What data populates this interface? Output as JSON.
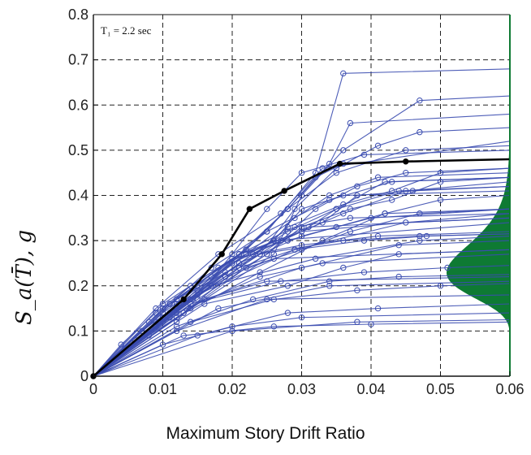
{
  "chart_data": {
    "type": "line",
    "xlabel": "Maximum Story Drift Ratio",
    "ylabel": "S_a(T̄), g",
    "xlim": [
      0,
      0.06
    ],
    "ylim": [
      0,
      0.8
    ],
    "x_ticks": [
      "0",
      "0.01",
      "0.02",
      "0.03",
      "0.04",
      "0.05",
      "0.06"
    ],
    "y_ticks": [
      "0",
      "0.1",
      "0.2",
      "0.3",
      "0.4",
      "0.5",
      "0.6",
      "0.7",
      "0.8"
    ],
    "annotation": "T₁ = 2.2 sec",
    "grid": true,
    "colors": {
      "ida_curves": "#3b4db0",
      "median_curve": "#000000",
      "distribution": "#0e7a33",
      "grid": "#222222"
    },
    "median_curve": {
      "x": [
        0,
        0.013,
        0.0185,
        0.0225,
        0.0275,
        0.0355,
        0.045,
        0.06
      ],
      "y": [
        0,
        0.17,
        0.27,
        0.37,
        0.41,
        0.47,
        0.475,
        0.48
      ]
    },
    "ida_curves": [
      {
        "x": [
          0,
          0.004,
          0.009,
          0.014,
          0.021,
          0.03,
          0.06
        ],
        "y": [
          0,
          0.07,
          0.14,
          0.2,
          0.27,
          0.32,
          0.36
        ]
      },
      {
        "x": [
          0,
          0.006,
          0.012,
          0.018,
          0.026,
          0.06
        ],
        "y": [
          0,
          0.08,
          0.16,
          0.24,
          0.3,
          0.34
        ]
      },
      {
        "x": [
          0,
          0.008,
          0.016,
          0.025,
          0.06
        ],
        "y": [
          0,
          0.09,
          0.17,
          0.21,
          0.22
        ]
      },
      {
        "x": [
          0,
          0.01,
          0.02,
          0.03,
          0.06
        ],
        "y": [
          0,
          0.07,
          0.11,
          0.13,
          0.14
        ]
      },
      {
        "x": [
          0,
          0.012,
          0.025,
          0.06
        ],
        "y": [
          0,
          0.1,
          0.17,
          0.18
        ]
      },
      {
        "x": [
          0,
          0.009,
          0.019,
          0.026,
          0.06
        ],
        "y": [
          0,
          0.12,
          0.22,
          0.26,
          0.28
        ]
      },
      {
        "x": [
          0,
          0.015,
          0.028,
          0.041,
          0.06
        ],
        "y": [
          0,
          0.09,
          0.14,
          0.15,
          0.16
        ]
      },
      {
        "x": [
          0,
          0.007,
          0.015,
          0.022,
          0.031,
          0.06
        ],
        "y": [
          0,
          0.1,
          0.19,
          0.27,
          0.33,
          0.35
        ]
      },
      {
        "x": [
          0,
          0.011,
          0.021,
          0.03,
          0.04,
          0.06
        ],
        "y": [
          0,
          0.13,
          0.25,
          0.31,
          0.35,
          0.37
        ]
      },
      {
        "x": [
          0,
          0.009,
          0.018,
          0.027,
          0.033,
          0.06
        ],
        "y": [
          0,
          0.15,
          0.27,
          0.36,
          0.46,
          0.52
        ]
      },
      {
        "x": [
          0,
          0.01,
          0.021,
          0.028,
          0.034,
          0.037,
          0.06
        ],
        "y": [
          0,
          0.16,
          0.27,
          0.37,
          0.47,
          0.56,
          0.58
        ]
      },
      {
        "x": [
          0,
          0.012,
          0.022,
          0.028,
          0.035,
          0.045,
          0.06
        ],
        "y": [
          0,
          0.17,
          0.28,
          0.37,
          0.45,
          0.5,
          0.51
        ]
      },
      {
        "x": [
          0,
          0.013,
          0.024,
          0.029,
          0.035,
          0.041,
          0.047,
          0.06
        ],
        "y": [
          0,
          0.16,
          0.27,
          0.37,
          0.46,
          0.51,
          0.54,
          0.55
        ]
      },
      {
        "x": [
          0,
          0.014,
          0.025,
          0.032,
          0.038,
          0.045,
          0.06
        ],
        "y": [
          0,
          0.17,
          0.27,
          0.37,
          0.42,
          0.45,
          0.46
        ]
      },
      {
        "x": [
          0,
          0.012,
          0.023,
          0.03,
          0.035,
          0.044,
          0.06
        ],
        "y": [
          0,
          0.15,
          0.27,
          0.32,
          0.37,
          0.41,
          0.42
        ]
      },
      {
        "x": [
          0,
          0.01,
          0.02,
          0.027,
          0.033,
          0.038,
          0.046,
          0.06
        ],
        "y": [
          0,
          0.14,
          0.25,
          0.3,
          0.34,
          0.4,
          0.41,
          0.42
        ]
      },
      {
        "x": [
          0,
          0.011,
          0.02,
          0.026,
          0.03,
          0.036,
          0.06
        ],
        "y": [
          0,
          0.13,
          0.25,
          0.3,
          0.37,
          0.4,
          0.41
        ]
      },
      {
        "x": [
          0,
          0.013,
          0.022,
          0.03,
          0.037,
          0.047,
          0.06
        ],
        "y": [
          0,
          0.14,
          0.24,
          0.28,
          0.32,
          0.36,
          0.37
        ]
      },
      {
        "x": [
          0,
          0.012,
          0.024,
          0.033,
          0.06
        ],
        "y": [
          0,
          0.14,
          0.22,
          0.25,
          0.27
        ]
      },
      {
        "x": [
          0,
          0.016,
          0.03,
          0.044,
          0.06
        ],
        "y": [
          0,
          0.17,
          0.24,
          0.29,
          0.3
        ]
      },
      {
        "x": [
          0,
          0.011,
          0.021,
          0.029,
          0.037,
          0.06
        ],
        "y": [
          0,
          0.13,
          0.27,
          0.33,
          0.35,
          0.36
        ]
      },
      {
        "x": [
          0,
          0.01,
          0.019,
          0.027,
          0.036,
          0.045,
          0.06
        ],
        "y": [
          0,
          0.12,
          0.22,
          0.3,
          0.36,
          0.41,
          0.43
        ]
      },
      {
        "x": [
          0,
          0.012,
          0.02,
          0.025,
          0.03,
          0.039,
          0.06
        ],
        "y": [
          0,
          0.12,
          0.27,
          0.37,
          0.45,
          0.49,
          0.5
        ]
      },
      {
        "x": [
          0,
          0.009,
          0.017,
          0.025,
          0.032,
          0.036,
          0.06
        ],
        "y": [
          0,
          0.11,
          0.22,
          0.32,
          0.45,
          0.67,
          0.68
        ]
      },
      {
        "x": [
          0,
          0.014,
          0.026,
          0.03,
          0.036,
          0.047,
          0.06
        ],
        "y": [
          0,
          0.15,
          0.27,
          0.4,
          0.5,
          0.61,
          0.62
        ]
      },
      {
        "x": [
          0,
          0.013,
          0.022,
          0.028,
          0.032,
          0.036,
          0.06
        ],
        "y": [
          0,
          0.16,
          0.28,
          0.37,
          0.44,
          0.47,
          0.48
        ]
      },
      {
        "x": [
          0,
          0.011,
          0.021,
          0.028,
          0.035,
          0.042,
          0.06
        ],
        "y": [
          0,
          0.14,
          0.25,
          0.32,
          0.37,
          0.43,
          0.44
        ]
      },
      {
        "x": [
          0,
          0.012,
          0.024,
          0.033,
          0.042,
          0.05,
          0.06
        ],
        "y": [
          0,
          0.13,
          0.23,
          0.3,
          0.36,
          0.39,
          0.4
        ]
      },
      {
        "x": [
          0,
          0.015,
          0.029,
          0.045,
          0.06
        ],
        "y": [
          0,
          0.18,
          0.28,
          0.34,
          0.35
        ]
      },
      {
        "x": [
          0,
          0.017,
          0.032,
          0.047,
          0.06
        ],
        "y": [
          0,
          0.2,
          0.26,
          0.3,
          0.31
        ]
      },
      {
        "x": [
          0,
          0.018,
          0.034,
          0.06
        ],
        "y": [
          0,
          0.15,
          0.2,
          0.21
        ]
      },
      {
        "x": [
          0,
          0.02,
          0.038,
          0.06
        ],
        "y": [
          0,
          0.1,
          0.12,
          0.125
        ]
      },
      {
        "x": [
          0,
          0.013,
          0.026,
          0.04,
          0.06
        ],
        "y": [
          0,
          0.09,
          0.11,
          0.115,
          0.12
        ]
      },
      {
        "x": [
          0,
          0.014,
          0.027,
          0.039,
          0.051,
          0.06
        ],
        "y": [
          0,
          0.16,
          0.21,
          0.23,
          0.24,
          0.245
        ]
      },
      {
        "x": [
          0,
          0.012,
          0.024,
          0.036,
          0.047,
          0.06
        ],
        "y": [
          0,
          0.17,
          0.27,
          0.3,
          0.31,
          0.315
        ]
      },
      {
        "x": [
          0,
          0.011,
          0.022,
          0.029,
          0.034,
          0.041,
          0.06
        ],
        "y": [
          0,
          0.16,
          0.27,
          0.35,
          0.4,
          0.44,
          0.45
        ]
      },
      {
        "x": [
          0,
          0.008,
          0.017,
          0.025,
          0.034,
          0.043,
          0.06
        ],
        "y": [
          0,
          0.12,
          0.24,
          0.32,
          0.39,
          0.43,
          0.44
        ]
      },
      {
        "x": [
          0,
          0.013,
          0.021,
          0.028,
          0.036,
          0.043,
          0.05,
          0.06
        ],
        "y": [
          0,
          0.14,
          0.24,
          0.33,
          0.38,
          0.41,
          0.45,
          0.46
        ]
      },
      {
        "x": [
          0,
          0.015,
          0.025,
          0.03,
          0.037,
          0.043,
          0.05,
          0.06
        ],
        "y": [
          0,
          0.17,
          0.27,
          0.33,
          0.37,
          0.39,
          0.43,
          0.44
        ]
      },
      {
        "x": [
          0,
          0.01,
          0.021,
          0.028,
          0.035,
          0.042,
          0.06
        ],
        "y": [
          0,
          0.15,
          0.27,
          0.3,
          0.33,
          0.36,
          0.37
        ]
      },
      {
        "x": [
          0,
          0.016,
          0.028,
          0.036,
          0.044,
          0.06
        ],
        "y": [
          0,
          0.16,
          0.2,
          0.24,
          0.27,
          0.28
        ]
      },
      {
        "x": [
          0,
          0.014,
          0.026,
          0.038,
          0.05,
          0.06
        ],
        "y": [
          0,
          0.12,
          0.17,
          0.19,
          0.2,
          0.205
        ]
      },
      {
        "x": [
          0,
          0.012,
          0.023,
          0.034,
          0.044,
          0.06
        ],
        "y": [
          0,
          0.11,
          0.17,
          0.21,
          0.22,
          0.225
        ]
      },
      {
        "x": [
          0,
          0.011,
          0.02,
          0.03,
          0.041,
          0.06
        ],
        "y": [
          0,
          0.16,
          0.26,
          0.29,
          0.31,
          0.32
        ]
      },
      {
        "x": [
          0,
          0.01,
          0.019,
          0.029,
          0.039,
          0.048,
          0.06
        ],
        "y": [
          0,
          0.13,
          0.23,
          0.28,
          0.3,
          0.31,
          0.315
        ]
      }
    ]
  }
}
